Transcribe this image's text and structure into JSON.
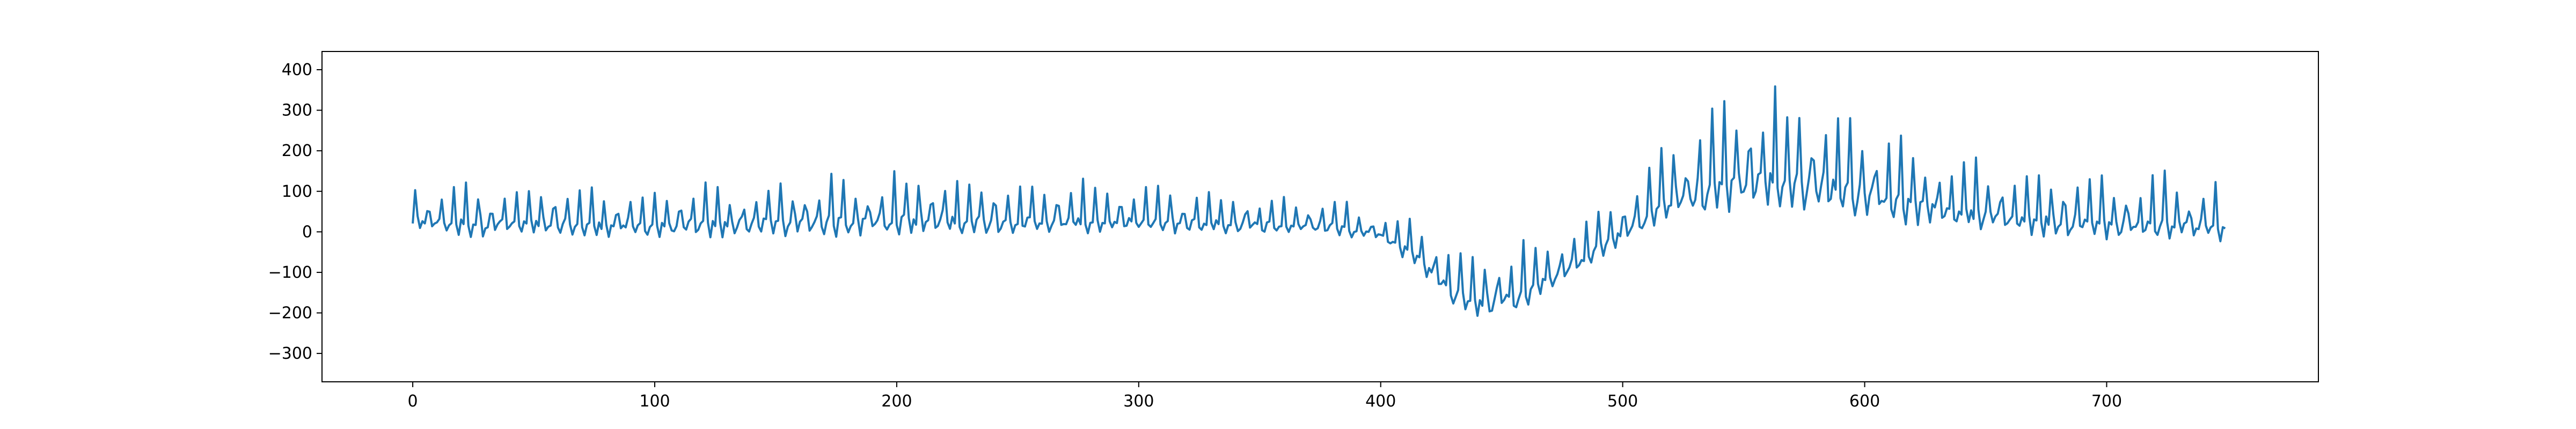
{
  "chart_data": {
    "type": "line",
    "title": "",
    "xlabel": "",
    "ylabel": "",
    "xlim": [
      -37.5,
      787.5
    ],
    "ylim": [
      -370,
      445
    ],
    "x_ticks": [
      0,
      100,
      200,
      300,
      400,
      500,
      600,
      700
    ],
    "y_ticks": [
      -300,
      -200,
      -100,
      0,
      100,
      200,
      300,
      400
    ],
    "grid": false,
    "legend": "none",
    "series_color": "#1f77b4",
    "trend_keypoints": [
      [
        0,
        25
      ],
      [
        100,
        15
      ],
      [
        200,
        30
      ],
      [
        300,
        25
      ],
      [
        380,
        15
      ],
      [
        400,
        -5
      ],
      [
        415,
        -60
      ],
      [
        430,
        -150
      ],
      [
        445,
        -175
      ],
      [
        460,
        -150
      ],
      [
        480,
        -80
      ],
      [
        500,
        0
      ],
      [
        520,
        80
      ],
      [
        550,
        130
      ],
      [
        580,
        120
      ],
      [
        620,
        70
      ],
      [
        650,
        40
      ],
      [
        700,
        20
      ],
      [
        749,
        15
      ]
    ],
    "amplitude_keypoints": [
      [
        0,
        90
      ],
      [
        100,
        80
      ],
      [
        200,
        105
      ],
      [
        300,
        75
      ],
      [
        380,
        60
      ],
      [
        400,
        40
      ],
      [
        420,
        90
      ],
      [
        445,
        120
      ],
      [
        470,
        100
      ],
      [
        500,
        90
      ],
      [
        530,
        170
      ],
      [
        560,
        190
      ],
      [
        600,
        160
      ],
      [
        650,
        110
      ],
      [
        700,
        110
      ],
      [
        749,
        100
      ]
    ],
    "n_points": 750,
    "cycle_points": 5.2
  }
}
